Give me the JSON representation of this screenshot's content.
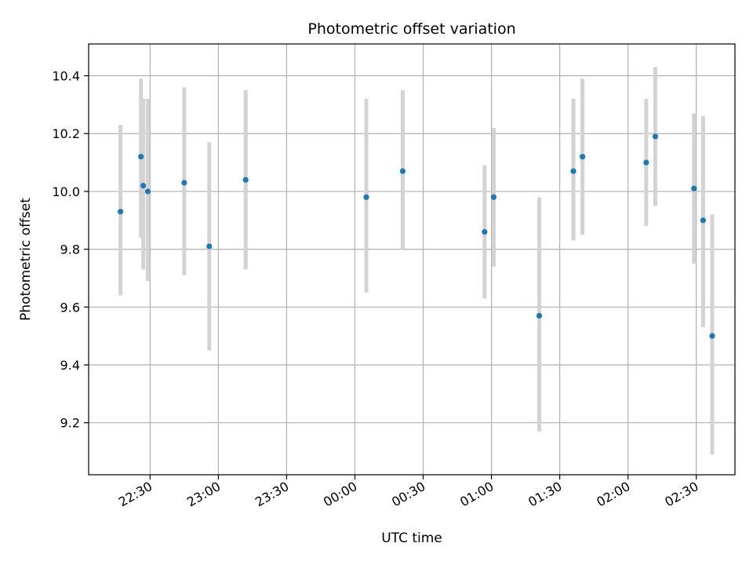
{
  "chart_data": {
    "type": "scatter",
    "title": "Photometric offset variation",
    "xlabel": "UTC time",
    "ylabel": "Photometric offset",
    "grid": true,
    "colors": {
      "points": "#1f77b4",
      "errorbars": "#d3d3d3",
      "grid": "#b0b0b0"
    },
    "xlim": [
      "22:03",
      "02:47"
    ],
    "ylim": [
      9.02,
      10.51
    ],
    "x_ticks": [
      "22:30",
      "23:00",
      "23:30",
      "00:00",
      "00:30",
      "01:00",
      "01:30",
      "02:00",
      "02:30"
    ],
    "y_ticks": [
      9.2,
      9.4,
      9.6,
      9.8,
      10.0,
      10.2,
      10.4
    ],
    "y_tick_labels": [
      "9.2",
      "9.4",
      "9.6",
      "9.8",
      "10.0",
      "10.2",
      "10.4"
    ],
    "series": [
      {
        "points": [
          {
            "x": "22:17",
            "y": 9.93,
            "err_low": 9.64,
            "err_high": 10.23
          },
          {
            "x": "22:26",
            "y": 10.12,
            "err_low": 9.84,
            "err_high": 10.39
          },
          {
            "x": "22:27",
            "y": 10.02,
            "err_low": 9.73,
            "err_high": 10.32
          },
          {
            "x": "22:29",
            "y": 10.0,
            "err_low": 9.69,
            "err_high": 10.32
          },
          {
            "x": "22:45",
            "y": 10.03,
            "err_low": 9.71,
            "err_high": 10.36
          },
          {
            "x": "22:56",
            "y": 9.81,
            "err_low": 9.45,
            "err_high": 10.17
          },
          {
            "x": "23:12",
            "y": 10.04,
            "err_low": 9.73,
            "err_high": 10.35
          },
          {
            "x": "00:05",
            "y": 9.98,
            "err_low": 9.65,
            "err_high": 10.32
          },
          {
            "x": "00:21",
            "y": 10.07,
            "err_low": 9.8,
            "err_high": 10.35
          },
          {
            "x": "00:57",
            "y": 9.86,
            "err_low": 9.63,
            "err_high": 10.09
          },
          {
            "x": "01:01",
            "y": 9.98,
            "err_low": 9.74,
            "err_high": 10.22
          },
          {
            "x": "01:21",
            "y": 9.57,
            "err_low": 9.17,
            "err_high": 9.98
          },
          {
            "x": "01:36",
            "y": 10.07,
            "err_low": 9.83,
            "err_high": 10.32
          },
          {
            "x": "01:40",
            "y": 10.12,
            "err_low": 9.85,
            "err_high": 10.39
          },
          {
            "x": "02:08",
            "y": 10.1,
            "err_low": 9.88,
            "err_high": 10.32
          },
          {
            "x": "02:12",
            "y": 10.19,
            "err_low": 9.95,
            "err_high": 10.43
          },
          {
            "x": "02:29",
            "y": 10.01,
            "err_low": 9.75,
            "err_high": 10.27
          },
          {
            "x": "02:33",
            "y": 9.9,
            "err_low": 9.53,
            "err_high": 10.26
          },
          {
            "x": "02:37",
            "y": 9.5,
            "err_low": 9.09,
            "err_high": 9.92
          }
        ]
      }
    ]
  }
}
